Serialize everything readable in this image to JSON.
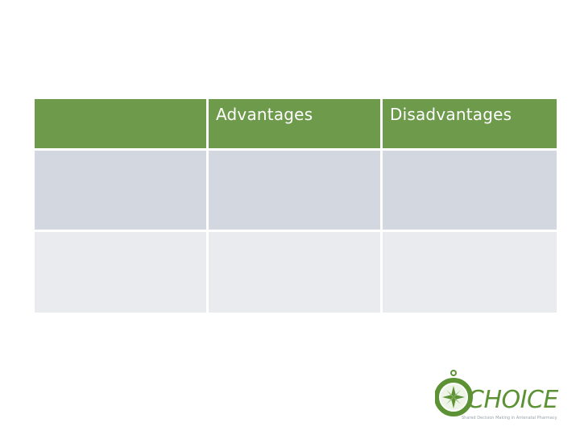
{
  "table": {
    "headers": [
      "",
      "Advantages",
      "Disadvantages"
    ],
    "rows": [
      [
        "",
        "",
        ""
      ],
      [
        "",
        "",
        ""
      ]
    ]
  },
  "logo": {
    "wordmark": "CHOICE",
    "tagline": "Shared Decision Making in Antenatal Pharmacy",
    "icon": "compass-icon",
    "color": "#5c9234"
  },
  "colors": {
    "header_green": "#6e9a4c",
    "row_dark": "#d3d8e0",
    "row_light": "#e9ebef"
  }
}
